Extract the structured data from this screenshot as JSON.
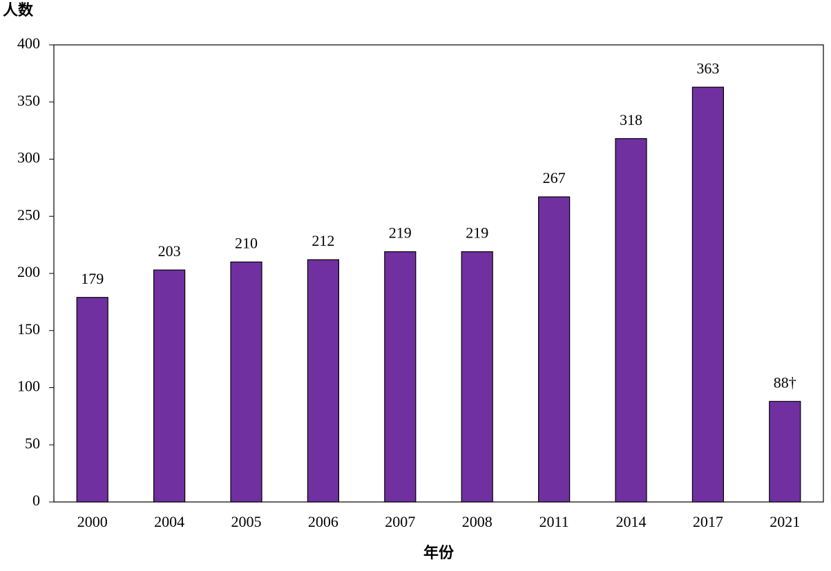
{
  "chart_data": {
    "type": "bar",
    "y_label": "人数",
    "x_label": "年份",
    "categories": [
      "2000",
      "2004",
      "2005",
      "2006",
      "2007",
      "2008",
      "2011",
      "2014",
      "2017",
      "2021"
    ],
    "values": [
      179,
      203,
      210,
      212,
      219,
      219,
      267,
      318,
      363,
      88
    ],
    "value_labels": [
      "179",
      "203",
      "210",
      "212",
      "219",
      "219",
      "267",
      "318",
      "363",
      "88†"
    ],
    "color": "#7030a0",
    "ylim": [
      0,
      400
    ],
    "yticks": [
      0,
      50,
      100,
      150,
      200,
      250,
      300,
      350,
      400
    ],
    "grid": false
  }
}
